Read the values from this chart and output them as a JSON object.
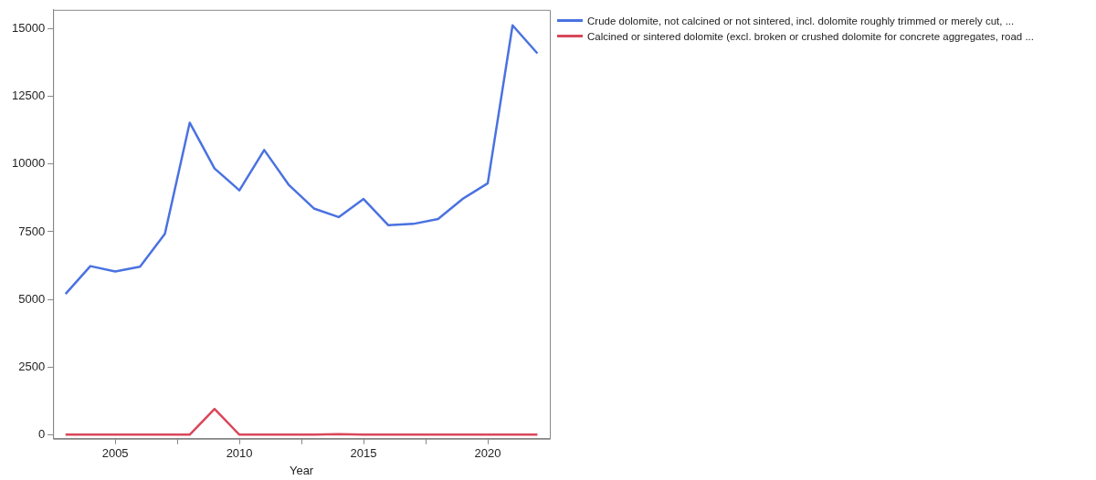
{
  "chart_data": {
    "type": "line",
    "xlabel": "Year",
    "x": [
      2003,
      2004,
      2005,
      2006,
      2007,
      2008,
      2009,
      2010,
      2011,
      2012,
      2013,
      2014,
      2015,
      2016,
      2017,
      2018,
      2019,
      2020,
      2021,
      2022
    ],
    "series": [
      {
        "name": "Crude dolomite, not calcined or not sintered, incl. dolomite roughly trimmed or merely cut, ...",
        "color": "#4a72e0",
        "values": [
          5200,
          6230,
          6030,
          6210,
          7420,
          11530,
          9840,
          9030,
          10520,
          9220,
          8360,
          8040,
          8710,
          7740,
          7790,
          7970,
          8720,
          9290,
          15130,
          14090
        ]
      },
      {
        "name": "Calcined or sintered dolomite (excl. broken or crushed dolomite for concrete aggregates, road ...",
        "color": "#d9475a",
        "values": [
          0,
          0,
          0,
          0,
          0,
          0,
          950,
          0,
          0,
          0,
          0,
          20,
          0,
          0,
          0,
          0,
          0,
          0,
          0,
          0
        ]
      }
    ],
    "xlim": [
      2002.5,
      2022.5
    ],
    "xticks": [
      2005,
      {
        "value": 2007.5,
        "label": null
      },
      2010,
      {
        "value": 2012.5,
        "label": null
      },
      2015,
      {
        "value": 2017.5,
        "label": null
      },
      2020
    ],
    "ylim": [
      -150,
      15700
    ],
    "yticks": [
      0,
      2500,
      5000,
      7500,
      10000,
      12500,
      15000
    ],
    "grid": false,
    "legend": "right",
    "marker": "none",
    "line_style": "solid"
  }
}
